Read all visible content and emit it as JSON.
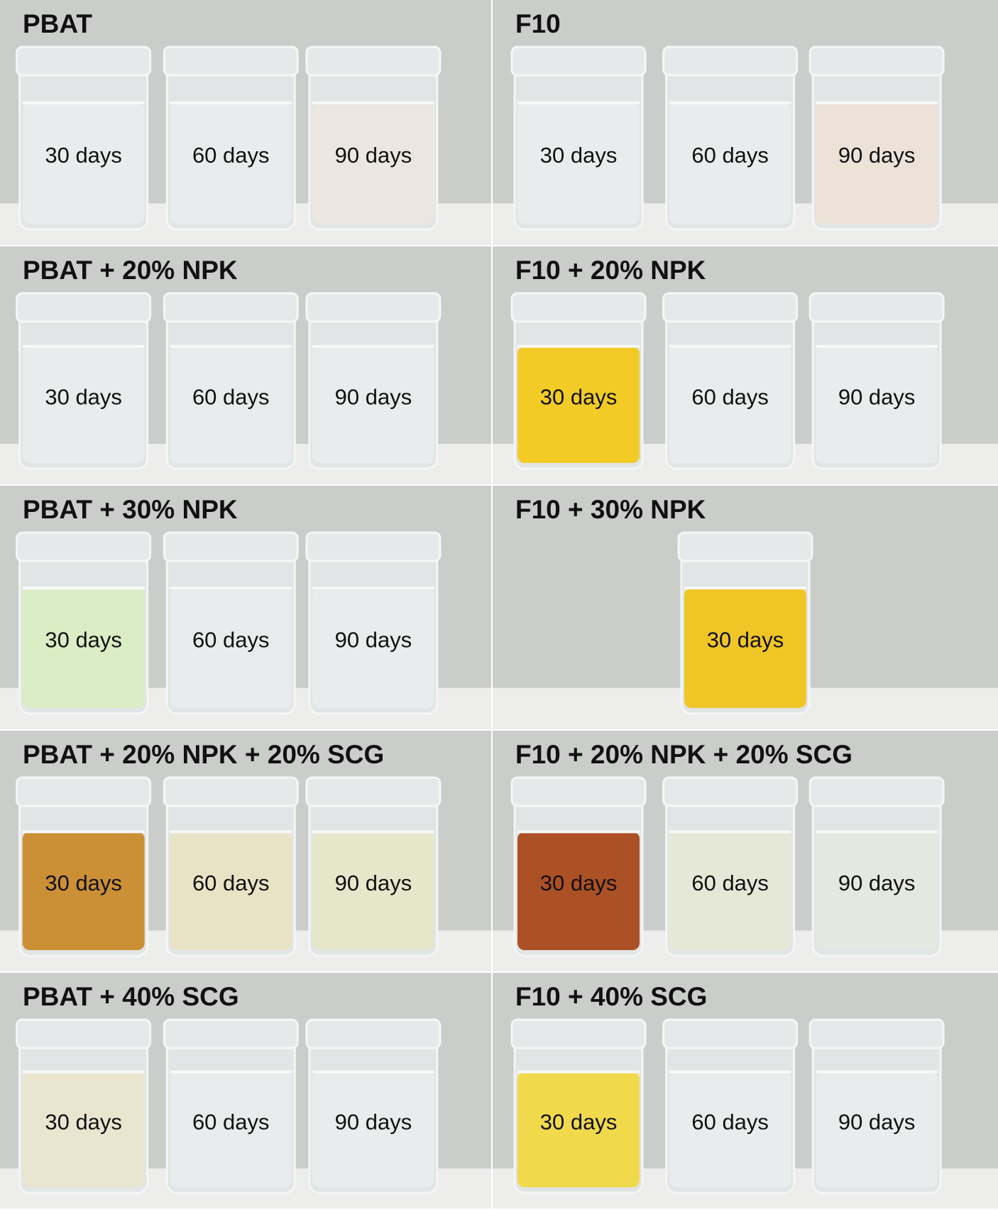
{
  "panels": [
    {
      "title": "PBAT",
      "jars": [
        "30 days",
        "60 days",
        "90 days"
      ]
    },
    {
      "title": "F10",
      "jars": [
        "30 days",
        "60 days",
        "90 days"
      ]
    },
    {
      "title": "PBAT + 20% NPK",
      "jars": [
        "30 days",
        "60 days",
        "90 days"
      ]
    },
    {
      "title": "F10 + 20% NPK",
      "jars": [
        "30 days",
        "60 days",
        "90 days"
      ]
    },
    {
      "title": "PBAT + 30% NPK",
      "jars": [
        "30 days",
        "60 days",
        "90 days"
      ]
    },
    {
      "title": "F10 + 30% NPK",
      "jars": [
        "30 days"
      ]
    },
    {
      "title": "PBAT + 20% NPK + 20% SCG",
      "jars": [
        "30 days",
        "60 days",
        "90 days"
      ]
    },
    {
      "title": "F10 + 20% NPK + 20% SCG",
      "jars": [
        "30 days",
        "60 days",
        "90 days"
      ]
    },
    {
      "title": "PBAT + 40% SCG",
      "jars": [
        "30 days",
        "60 days",
        "90 days"
      ]
    },
    {
      "title": "F10 + 40% SCG",
      "jars": [
        "30 days",
        "60 days",
        "90 days"
      ]
    }
  ]
}
